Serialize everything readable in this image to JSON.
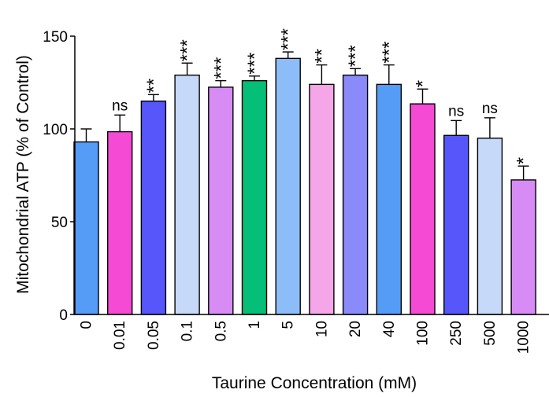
{
  "chart_data": {
    "type": "bar",
    "xlabel": "Taurine Concentration (mM)",
    "ylabel": "Mitochondrial ATP (% of Control)",
    "ylim": [
      0,
      150
    ],
    "yticks": [
      0,
      50,
      100,
      150
    ],
    "grid": false,
    "categories": [
      "0",
      "0.01",
      "0.05",
      "0.1",
      "0.5",
      "1",
      "5",
      "10",
      "20",
      "40",
      "100",
      "250",
      "500",
      "1000"
    ],
    "values": [
      93,
      98.5,
      115,
      129,
      122.5,
      126,
      138,
      124,
      129,
      124,
      113.5,
      96.5,
      95,
      72.5
    ],
    "errors": [
      7,
      9,
      3.5,
      6.5,
      3.5,
      2.5,
      3.5,
      10.5,
      3.5,
      10.5,
      8,
      8,
      11,
      7.5
    ],
    "significance": [
      "",
      "ns",
      "**",
      "***",
      "***",
      "***",
      "***",
      "**",
      "***",
      "***",
      "*",
      "ns",
      "ns",
      "*"
    ],
    "colors": [
      "#559cf7",
      "#f44ad4",
      "#5656fa",
      "#c6d9f8",
      "#d78cf5",
      "#05be78",
      "#8cbdf8",
      "#f5a6e8",
      "#8b8afb",
      "#559cf7",
      "#f44ad4",
      "#5656fa",
      "#c6d9f8",
      "#d78cf5"
    ]
  }
}
